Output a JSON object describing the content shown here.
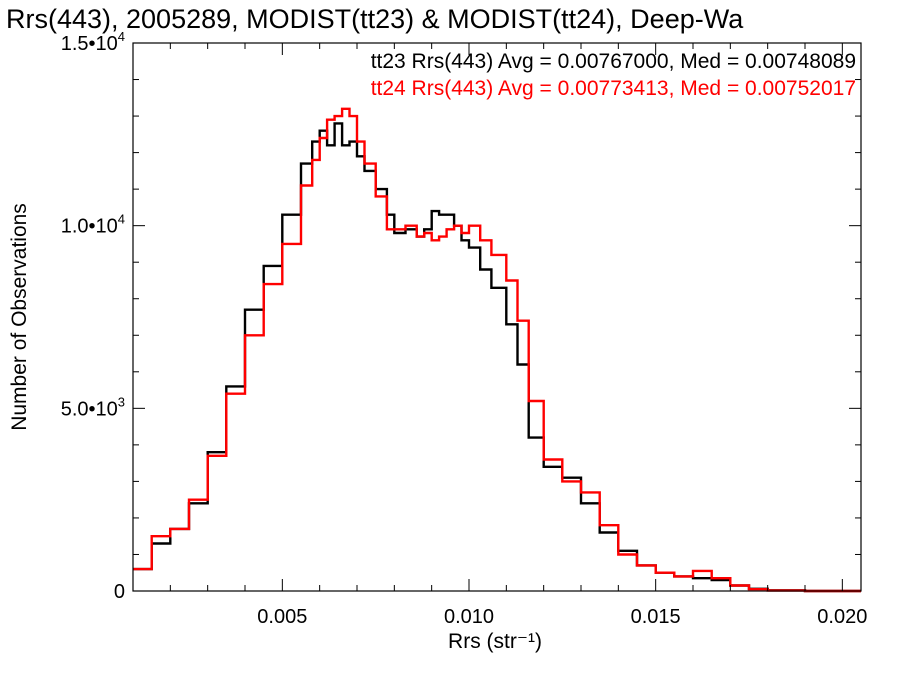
{
  "chart_data": {
    "type": "line",
    "title": "Rrs(443), 2005289, MODIST(tt23) & MODIST(tt24), Deep-Wa",
    "xlabel": "Rrs (str⁻¹)",
    "ylabel": "Number of Observations",
    "xlim": [
      0.001,
      0.0205
    ],
    "ylim": [
      0,
      15000
    ],
    "x_ticks": [
      {
        "value": 0.005,
        "label": "0.005"
      },
      {
        "value": 0.01,
        "label": "0.010"
      },
      {
        "value": 0.015,
        "label": "0.015"
      },
      {
        "value": 0.02,
        "label": "0.020"
      }
    ],
    "y_ticks": [
      {
        "value": 0,
        "mantissa": "0",
        "exp": ""
      },
      {
        "value": 5000,
        "mantissa": "5.0•10",
        "exp": "3"
      },
      {
        "value": 10000,
        "mantissa": "1.0•10",
        "exp": "4"
      },
      {
        "value": 15000,
        "mantissa": "1.5•10",
        "exp": "4"
      }
    ],
    "grid": false,
    "legend_position": "top-right",
    "series": [
      {
        "legend": "tt23 Rrs(443) Avg = 0.00767000, Med = 0.00748089",
        "color": "#000000",
        "x": [
          0.001,
          0.0015,
          0.002,
          0.0025,
          0.003,
          0.0035,
          0.004,
          0.0045,
          0.005,
          0.0055,
          0.0058,
          0.006,
          0.0062,
          0.0064,
          0.0066,
          0.0068,
          0.007,
          0.0072,
          0.0075,
          0.0078,
          0.008,
          0.0083,
          0.0086,
          0.0088,
          0.009,
          0.0092,
          0.0094,
          0.0096,
          0.0098,
          0.01,
          0.0103,
          0.0106,
          0.011,
          0.0113,
          0.0116,
          0.012,
          0.0125,
          0.013,
          0.0135,
          0.014,
          0.0145,
          0.015,
          0.0155,
          0.016,
          0.0165,
          0.017,
          0.0175,
          0.018,
          0.019,
          0.02,
          0.0205
        ],
        "y": [
          600,
          1300,
          1700,
          2400,
          3800,
          5600,
          7700,
          8900,
          10300,
          11700,
          12300,
          12600,
          12200,
          12800,
          12200,
          12300,
          11900,
          11500,
          11000,
          10300,
          9800,
          9900,
          9700,
          9900,
          10400,
          10300,
          10300,
          10000,
          9600,
          9400,
          8800,
          8300,
          7300,
          6200,
          4200,
          3400,
          3100,
          2400,
          1600,
          1100,
          700,
          500,
          400,
          350,
          300,
          150,
          60,
          20,
          0,
          0,
          0
        ]
      },
      {
        "legend": "tt24 Rrs(443) Avg = 0.00773413, Med = 0.00752017",
        "color": "#ff0000",
        "x": [
          0.001,
          0.0015,
          0.002,
          0.0025,
          0.003,
          0.0035,
          0.004,
          0.0045,
          0.005,
          0.0055,
          0.0058,
          0.006,
          0.0062,
          0.0064,
          0.0066,
          0.0068,
          0.007,
          0.0072,
          0.0075,
          0.0078,
          0.008,
          0.0083,
          0.0086,
          0.0088,
          0.009,
          0.0092,
          0.0094,
          0.0096,
          0.0098,
          0.01,
          0.0103,
          0.0106,
          0.011,
          0.0113,
          0.0116,
          0.012,
          0.0125,
          0.013,
          0.0135,
          0.014,
          0.0145,
          0.015,
          0.0155,
          0.016,
          0.0165,
          0.017,
          0.0175,
          0.018,
          0.019,
          0.02,
          0.0205
        ],
        "y": [
          600,
          1500,
          1700,
          2500,
          3700,
          5400,
          7000,
          8400,
          9500,
          11100,
          11800,
          12400,
          12900,
          13000,
          13200,
          13000,
          12300,
          11700,
          10800,
          9900,
          9900,
          10000,
          9700,
          9800,
          9600,
          9700,
          9900,
          10000,
          9800,
          10000,
          9600,
          9200,
          8500,
          7400,
          5200,
          3600,
          3000,
          2700,
          1800,
          1000,
          700,
          500,
          400,
          550,
          350,
          150,
          50,
          10,
          0,
          0,
          0
        ]
      }
    ]
  }
}
